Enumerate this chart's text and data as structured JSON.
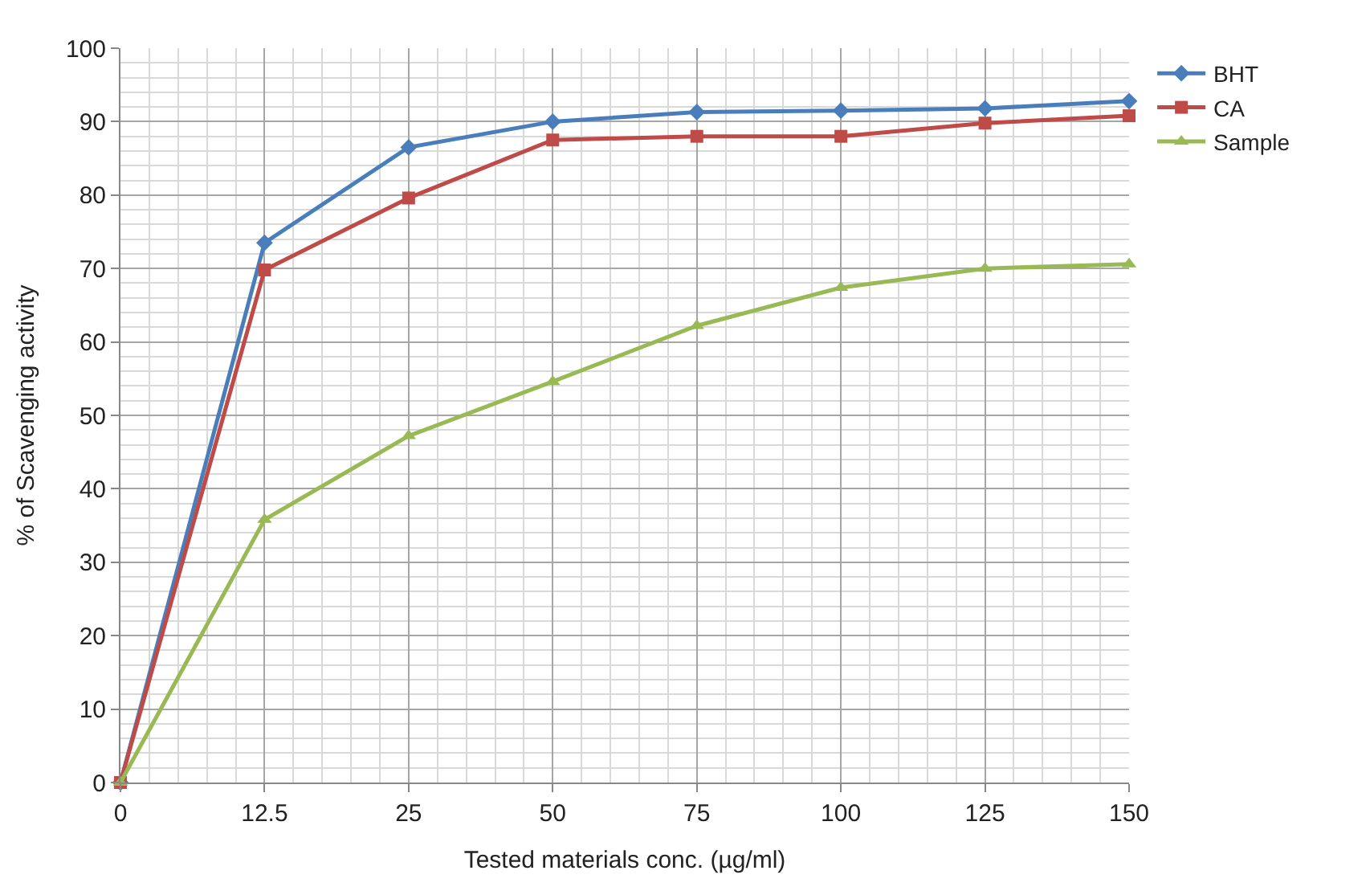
{
  "chart_data": {
    "type": "line",
    "xlabel": "Tested materials conc. (µg/ml)",
    "ylabel": "% of Scavenging activity",
    "categories": [
      "0",
      "12.5",
      "25",
      "50",
      "75",
      "100",
      "125",
      "150"
    ],
    "series": [
      {
        "name": "BHT",
        "color": "#4a7ebb",
        "marker": "diamond",
        "values": [
          0,
          73.5,
          86.5,
          90,
          91.3,
          91.5,
          91.8,
          92.8
        ]
      },
      {
        "name": "CA",
        "color": "#be4b48",
        "marker": "square",
        "values": [
          0,
          69.8,
          79.6,
          87.5,
          88,
          88,
          89.8,
          90.8
        ]
      },
      {
        "name": "Sample",
        "color": "#98b954",
        "marker": "triangle",
        "values": [
          0,
          35.8,
          47.2,
          54.6,
          62.2,
          67.4,
          70,
          70.6
        ]
      }
    ],
    "ylim": [
      0,
      100
    ],
    "yticks": [
      0,
      10,
      20,
      30,
      40,
      50,
      60,
      70,
      80,
      90,
      100
    ],
    "grid": true,
    "legend": "top right",
    "line_style": "solid"
  }
}
